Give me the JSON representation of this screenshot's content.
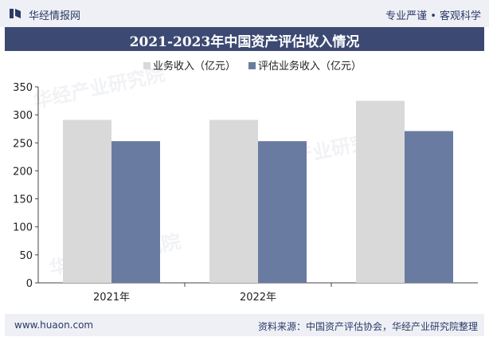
{
  "header": {
    "brand": "华经情报网",
    "slogan": "专业严谨 • 客观科学"
  },
  "footer": {
    "url": "www.huaon.com",
    "source": "资料来源：中国资产评估协会，华经产业研究院整理"
  },
  "chart_data": {
    "type": "bar",
    "title": "2021-2023年中国资产评估收入情况",
    "categories": [
      "2021年",
      "2022年",
      ""
    ],
    "series": [
      {
        "name": "业务收入（亿元）",
        "values": [
          291,
          291,
          325
        ],
        "color": "#d9d9d9"
      },
      {
        "name": "评估业务收入（亿元）",
        "values": [
          253,
          253,
          271
        ],
        "color": "#6a7ba2"
      }
    ],
    "ylim": [
      0,
      350
    ],
    "yticks": [
      0,
      50,
      100,
      150,
      200,
      250,
      300,
      350
    ],
    "legend_position": "top",
    "grid": false
  }
}
